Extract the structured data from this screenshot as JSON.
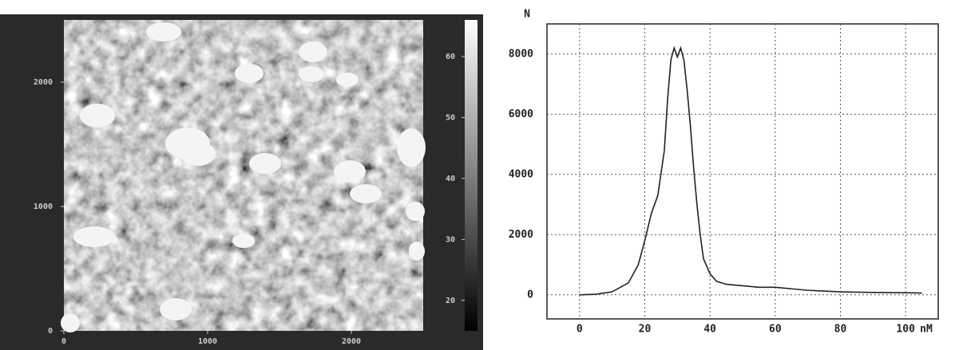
{
  "chart_data": [
    {
      "type": "heatmap",
      "xlim": [
        0,
        2500
      ],
      "xticks": [
        0,
        1000,
        2000
      ],
      "ylim": [
        0,
        2500
      ],
      "yticks": [
        0,
        1000,
        2000
      ],
      "zlim": [
        15,
        66
      ],
      "zticks": [
        20,
        30,
        40,
        50,
        60
      ]
    },
    {
      "type": "line",
      "x_label": "nM",
      "y_label": "N",
      "grid": true,
      "x": [
        0,
        5,
        10,
        15,
        18,
        20,
        22,
        24,
        26,
        27,
        28,
        29,
        30,
        31,
        32,
        33,
        34,
        35,
        36,
        37,
        38,
        40,
        42,
        45,
        50,
        55,
        60,
        65,
        70,
        80,
        90,
        100,
        105
      ],
      "series": [
        {
          "color": "#222222",
          "values": [
            0,
            20,
            100,
            400,
            1000,
            1800,
            2700,
            3300,
            4800,
            6500,
            7800,
            8200,
            7900,
            8200,
            7800,
            6800,
            5600,
            4200,
            3000,
            2000,
            1200,
            700,
            450,
            350,
            300,
            250,
            250,
            200,
            150,
            100,
            80,
            70,
            60
          ]
        }
      ],
      "xlim": [
        -10,
        110
      ],
      "xticks": [
        0,
        20,
        40,
        60,
        80,
        100
      ],
      "ylim": [
        -800,
        9000
      ],
      "yticks": [
        0,
        2000,
        4000,
        6000,
        8000
      ]
    }
  ]
}
